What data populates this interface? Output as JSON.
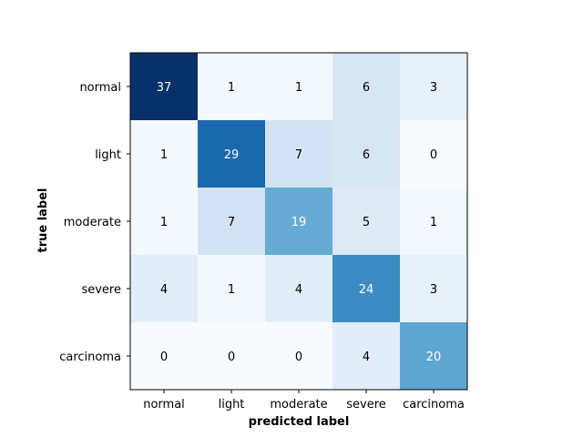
{
  "chart_data": {
    "type": "heatmap",
    "title": "",
    "xlabel": "predicted label",
    "ylabel": "true label",
    "x_categories": [
      "normal",
      "light",
      "moderate",
      "severe",
      "carcinoma"
    ],
    "y_categories": [
      "normal",
      "light",
      "moderate",
      "severe",
      "carcinoma"
    ],
    "values": [
      [
        37,
        1,
        1,
        6,
        3
      ],
      [
        1,
        29,
        7,
        6,
        0
      ],
      [
        1,
        7,
        19,
        5,
        1
      ],
      [
        4,
        1,
        4,
        24,
        3
      ],
      [
        0,
        0,
        0,
        4,
        20
      ]
    ],
    "colormap": "Blues",
    "color_range": [
      0,
      37
    ],
    "colorbar": false,
    "grid": false
  }
}
